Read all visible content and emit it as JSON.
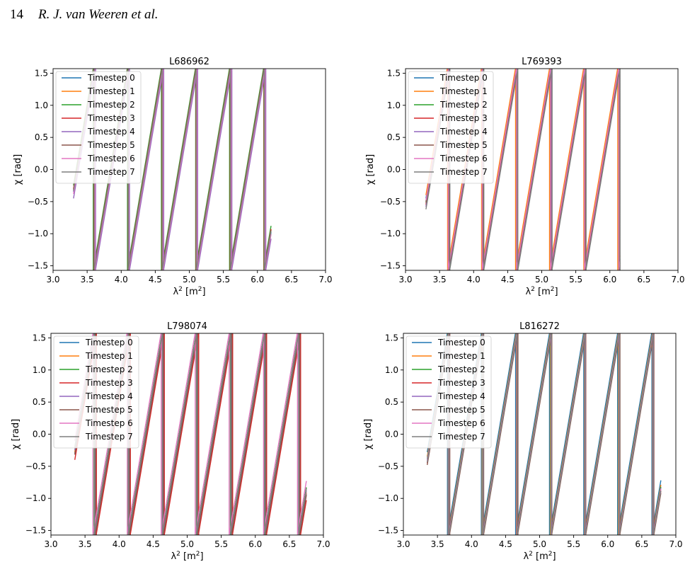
{
  "header": {
    "page_number": "14",
    "authors": "R. J. van Weeren et al."
  },
  "series_colors": [
    "#1f77b4",
    "#ff7f0e",
    "#2ca02c",
    "#d62728",
    "#9467bd",
    "#8c564b",
    "#e377c2",
    "#7f7f7f"
  ],
  "chart_data": [
    {
      "type": "line",
      "title": "L686962",
      "xlabel": "λ² [m²]",
      "ylabel": "χ [rad]",
      "xlim": [
        3.0,
        7.0
      ],
      "ylim": [
        -1.5708,
        1.5708
      ],
      "x_range": [
        3.3,
        6.2
      ],
      "xticks": [
        "3.0",
        "3.5",
        "4.0",
        "4.5",
        "5.0",
        "5.5",
        "6.0",
        "6.5",
        "7.0"
      ],
      "yticks": [
        "−1.5",
        "−1.0",
        "−0.5",
        "0.0",
        "0.5",
        "1.0",
        "1.5"
      ],
      "grid": false,
      "legend_position": "upper-left",
      "wrap_period_lambda2": 0.5,
      "series": [
        {
          "name": "Timestep 0",
          "start_chi": -0.35
        },
        {
          "name": "Timestep 1",
          "start_chi": -0.3
        },
        {
          "name": "Timestep 2",
          "start_chi": -0.25
        },
        {
          "name": "Timestep 3",
          "start_chi": -0.3
        },
        {
          "name": "Timestep 4",
          "start_chi": -0.45
        },
        {
          "name": "Timestep 5",
          "start_chi": -0.32
        },
        {
          "name": "Timestep 6",
          "start_chi": -0.38
        },
        {
          "name": "Timestep 7",
          "start_chi": -0.33
        }
      ]
    },
    {
      "type": "line",
      "title": "L769393",
      "xlabel": "λ² [m²]",
      "ylabel": "χ [rad]",
      "xlim": [
        3.0,
        7.0
      ],
      "ylim": [
        -1.5708,
        1.5708
      ],
      "x_range": [
        3.3,
        6.15
      ],
      "xticks": [
        "3.0",
        "3.5",
        "4.0",
        "4.5",
        "5.0",
        "5.5",
        "6.0",
        "6.5",
        "7.0"
      ],
      "yticks": [
        "−1.5",
        "−1.0",
        "−0.5",
        "0.0",
        "0.5",
        "1.0",
        "1.5"
      ],
      "grid": false,
      "legend_position": "upper-left",
      "wrap_period_lambda2": 0.5,
      "series": [
        {
          "name": "Timestep 0",
          "start_chi": -0.45
        },
        {
          "name": "Timestep 1",
          "start_chi": -0.4
        },
        {
          "name": "Timestep 2",
          "start_chi": -0.5
        },
        {
          "name": "Timestep 3",
          "start_chi": -0.55
        },
        {
          "name": "Timestep 4",
          "start_chi": -0.58
        },
        {
          "name": "Timestep 5",
          "start_chi": -0.52
        },
        {
          "name": "Timestep 6",
          "start_chi": -0.48
        },
        {
          "name": "Timestep 7",
          "start_chi": -0.62
        }
      ]
    },
    {
      "type": "line",
      "title": "L798074",
      "xlabel": "λ² [m²]",
      "ylabel": "χ [rad]",
      "xlim": [
        3.0,
        7.0
      ],
      "ylim": [
        -1.5708,
        1.5708
      ],
      "x_range": [
        3.35,
        6.75
      ],
      "xticks": [
        "3.0",
        "3.5",
        "4.0",
        "4.5",
        "5.0",
        "5.5",
        "6.0",
        "6.5",
        "7.0"
      ],
      "yticks": [
        "−1.5",
        "−1.0",
        "−0.5",
        "0.0",
        "0.5",
        "1.0",
        "1.5"
      ],
      "grid": false,
      "legend_position": "upper-left",
      "wrap_period_lambda2": 0.5,
      "series": [
        {
          "name": "Timestep 0",
          "start_chi": -0.3
        },
        {
          "name": "Timestep 1",
          "start_chi": -0.28
        },
        {
          "name": "Timestep 2",
          "start_chi": -0.2
        },
        {
          "name": "Timestep 3",
          "start_chi": -0.4
        },
        {
          "name": "Timestep 4",
          "start_chi": -0.25
        },
        {
          "name": "Timestep 5",
          "start_chi": -0.32
        },
        {
          "name": "Timestep 6",
          "start_chi": -0.1
        },
        {
          "name": "Timestep 7",
          "start_chi": -0.22
        }
      ]
    },
    {
      "type": "line",
      "title": "L816272",
      "xlabel": "λ² [m²]",
      "ylabel": "χ [rad]",
      "xlim": [
        3.0,
        7.0
      ],
      "ylim": [
        -1.5708,
        1.5708
      ],
      "x_range": [
        3.35,
        6.78
      ],
      "xticks": [
        "3.0",
        "3.5",
        "4.0",
        "4.5",
        "5.0",
        "5.5",
        "6.0",
        "6.5",
        "7.0"
      ],
      "yticks": [
        "−1.5",
        "−1.0",
        "−0.5",
        "0.0",
        "0.5",
        "1.0",
        "1.5"
      ],
      "grid": false,
      "legend_position": "upper-left",
      "wrap_period_lambda2": 0.5,
      "series": [
        {
          "name": "Timestep 0",
          "start_chi": -0.28
        },
        {
          "name": "Timestep 1",
          "start_chi": -0.35
        },
        {
          "name": "Timestep 2",
          "start_chi": -0.38
        },
        {
          "name": "Timestep 3",
          "start_chi": -0.45
        },
        {
          "name": "Timestep 4",
          "start_chi": -0.4
        },
        {
          "name": "Timestep 5",
          "start_chi": -0.48
        },
        {
          "name": "Timestep 6",
          "start_chi": -0.42
        },
        {
          "name": "Timestep 7",
          "start_chi": -0.44
        }
      ]
    }
  ]
}
